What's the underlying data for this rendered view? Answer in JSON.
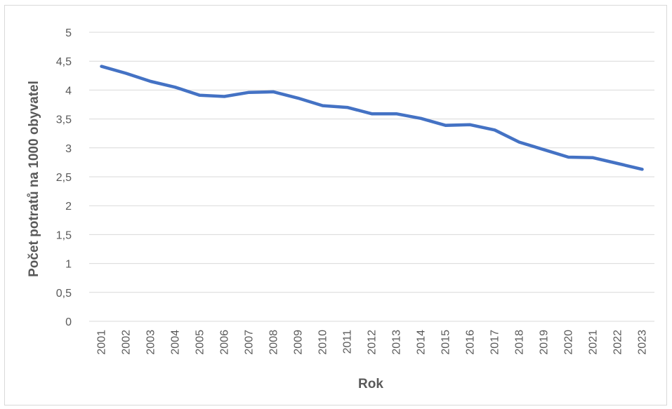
{
  "chart_data": {
    "type": "line",
    "title": "",
    "xlabel": "Rok",
    "ylabel": "Počet potratů na 1000 obyvatel",
    "ylim": [
      0,
      5
    ],
    "yticks": [
      "0",
      "0,5",
      "1",
      "1,5",
      "2",
      "2,5",
      "3",
      "3,5",
      "4",
      "4,5",
      "5"
    ],
    "grid": true,
    "legend": "none",
    "categories": [
      "2001",
      "2002",
      "2003",
      "2004",
      "2005",
      "2006",
      "2007",
      "2008",
      "2009",
      "2010",
      "2011",
      "2012",
      "2013",
      "2014",
      "2015",
      "2016",
      "2017",
      "2018",
      "2019",
      "2020",
      "2021",
      "2022",
      "2023"
    ],
    "series": [
      {
        "color": "#4472c4",
        "values": [
          4.41,
          4.29,
          4.15,
          4.05,
          3.91,
          3.89,
          3.96,
          3.97,
          3.86,
          3.73,
          3.7,
          3.59,
          3.59,
          3.51,
          3.39,
          3.4,
          3.31,
          3.1,
          2.97,
          2.84,
          2.83,
          2.73,
          2.63
        ]
      }
    ]
  }
}
